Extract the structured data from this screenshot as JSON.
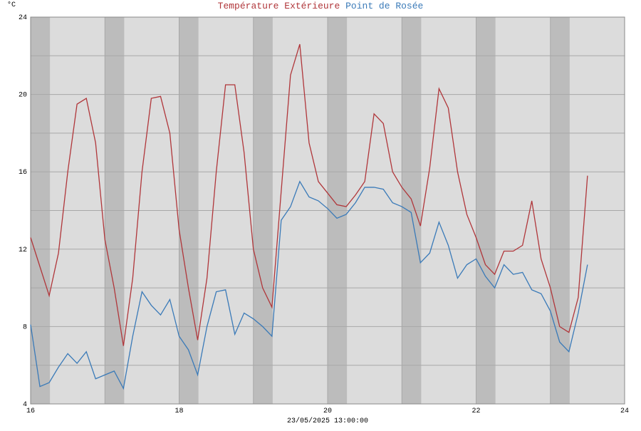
{
  "chart_data": {
    "type": "line",
    "y_unit": "°C",
    "xlabel": "23/05/2025 13:00:00",
    "xlim": [
      16,
      24
    ],
    "ylim": [
      4,
      24
    ],
    "xticks": [
      16,
      18,
      20,
      22,
      24
    ],
    "yticks": [
      4,
      8,
      12,
      16,
      20,
      24
    ],
    "xgrid": [
      17,
      19,
      21,
      23
    ],
    "ygrid": [
      6,
      10,
      14,
      18,
      22
    ],
    "grid": true,
    "shaded_bands": [
      [
        16,
        16.26
      ],
      [
        17,
        17.26
      ],
      [
        18,
        18.26
      ],
      [
        19,
        19.26
      ],
      [
        20,
        20.26
      ],
      [
        21,
        21.26
      ],
      [
        22,
        22.26
      ],
      [
        23,
        23.26
      ]
    ],
    "x": [
      16,
      16.125,
      16.25,
      16.375,
      16.5,
      16.625,
      16.75,
      16.875,
      17,
      17.125,
      17.25,
      17.375,
      17.5,
      17.625,
      17.75,
      17.875,
      18,
      18.125,
      18.25,
      18.375,
      18.5,
      18.625,
      18.75,
      18.875,
      19,
      19.125,
      19.25,
      19.375,
      19.5,
      19.625,
      19.75,
      19.875,
      20,
      20.125,
      20.25,
      20.375,
      20.5,
      20.625,
      20.75,
      20.875,
      21,
      21.125,
      21.25,
      21.375,
      21.5,
      21.625,
      21.75,
      21.875,
      22,
      22.125,
      22.25,
      22.375,
      22.5,
      22.625,
      22.75,
      22.875,
      23,
      23.125,
      23.25,
      23.375,
      23.5
    ],
    "series": [
      {
        "name": "Température Extérieure",
        "color": "#b0363a",
        "values": [
          12.6,
          11.1,
          9.6,
          11.8,
          16,
          19.5,
          19.8,
          17.5,
          12.5,
          10,
          7,
          10.5,
          16,
          19.8,
          19.9,
          18,
          13,
          10,
          7.3,
          10.5,
          16,
          20.5,
          20.5,
          17,
          12,
          10,
          9,
          15,
          21,
          22.6,
          17.5,
          15.5,
          14.9,
          14.3,
          14.2,
          14.8,
          15.5,
          19,
          18.5,
          16,
          15.2,
          14.6,
          13.2,
          16.2,
          20.3,
          19.3,
          16,
          13.8,
          12.6,
          11.2,
          10.7,
          11.9,
          11.9,
          12.2,
          14.5,
          11.5,
          10,
          8,
          7.7,
          9.5,
          15.8
        ]
      },
      {
        "name": "Point de Rosée",
        "color": "#3a7ab8",
        "values": [
          8.1,
          4.9,
          5.1,
          5.9,
          6.6,
          6.1,
          6.7,
          5.3,
          5.5,
          5.7,
          4.8,
          7.5,
          9.8,
          9.1,
          8.6,
          9.4,
          7.5,
          6.8,
          5.5,
          8,
          9.8,
          9.9,
          7.6,
          8.7,
          8.4,
          8,
          7.5,
          13.5,
          14.2,
          15.5,
          14.7,
          14.5,
          14.1,
          13.6,
          13.8,
          14.4,
          15.2,
          15.2,
          15.1,
          14.4,
          14.2,
          13.9,
          11.3,
          11.8,
          13.4,
          12.2,
          10.5,
          11.2,
          11.5,
          10.6,
          10,
          11.2,
          10.7,
          10.8,
          9.9,
          9.7,
          8.8,
          7.2,
          6.7,
          8.7,
          11.2
        ]
      }
    ]
  }
}
